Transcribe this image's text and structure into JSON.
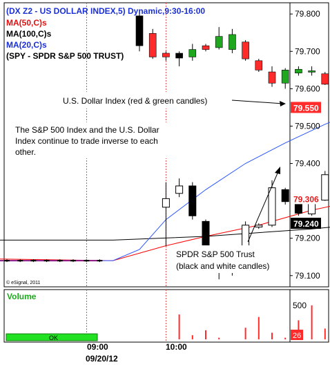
{
  "chart_data": {
    "type": "candlestick",
    "header": {
      "line1": "(DX Z2 - US DOLLAR INDEX,5) Dynamic,9:30-16:00",
      "line2": "MA(50,C)s",
      "line3": "MA(100,C)s",
      "line4": "MA(20,C)s",
      "line5": "(SPY - SPDR S&P 500 TRUST)"
    },
    "copyright": "© eSignal, 2011",
    "annotations": {
      "dollar": "U.S. Dollar Index (red & green candles)",
      "inverse_1": "The S&P 500 Index and the U.S. Dollar",
      "inverse_2": "Index continue to trade inverse to each",
      "inverse_3": "other.",
      "spdr_1": "SPDR S&P 500 Trust",
      "spdr_2": "(black and white candles)"
    },
    "price_axis": {
      "ticks": [
        "79.800",
        "79.700",
        "79.600",
        "79.500",
        "79.400",
        "79.200",
        "79.100"
      ],
      "range": [
        79.07,
        79.83
      ]
    },
    "price_labels": [
      {
        "text": "79.550",
        "value": 79.55,
        "color": "#ff2a2a",
        "text_color": "#ffffff"
      },
      {
        "text": "79.306",
        "value": 79.306,
        "color": "#ffffff",
        "text_color": "#e02020"
      },
      {
        "text": "79.240",
        "value": 79.24,
        "color": "#000000",
        "text_color": "#ffffff"
      }
    ],
    "time_axis": {
      "labels": [
        "09:00",
        "10:00"
      ],
      "date": "09/20/12"
    },
    "volume": {
      "title": "Volume",
      "ticks": [
        "500",
        "0"
      ],
      "last": "26",
      "ok_label": "OK",
      "bars": [
        {
          "i": 8,
          "v": 300,
          "c": "#ff2a2a"
        },
        {
          "i": 9,
          "v": 50,
          "c": "#ff2a2a"
        },
        {
          "i": 10,
          "v": 110,
          "c": "#ff2a2a"
        },
        {
          "i": 11,
          "v": 20,
          "c": "#ff2a2a"
        },
        {
          "i": 13,
          "v": 140,
          "c": "#ff2a2a"
        },
        {
          "i": 14,
          "v": 270,
          "c": "#ff2a2a"
        },
        {
          "i": 15,
          "v": 80,
          "c": "#ff2a2a"
        },
        {
          "i": 16,
          "v": 20,
          "c": "#ff2a2a"
        },
        {
          "i": 17,
          "v": 230,
          "c": "#ff2a2a"
        },
        {
          "i": 18,
          "v": 410,
          "c": "#ff2a2a"
        },
        {
          "i": 19,
          "v": 130,
          "c": "#ff2a2a"
        },
        {
          "i": 20,
          "v": 250,
          "c": "#ff2a2a"
        },
        {
          "i": 21,
          "v": 190,
          "c": "#ff2a2a"
        },
        {
          "i": 22,
          "v": 510,
          "c": "#ff2a2a"
        },
        {
          "i": 23,
          "v": 60,
          "c": "#ff2a2a"
        },
        {
          "i": 24,
          "v": 470,
          "c": "#ff2a2a"
        },
        {
          "i": 25,
          "v": 200,
          "c": "#ff2a2a"
        },
        {
          "i": 26,
          "v": 40,
          "c": "#ff2a2a"
        },
        {
          "i": 27,
          "v": 190,
          "c": "#ff2a2a"
        },
        {
          "i": 28,
          "v": 60,
          "c": "#ff2a2a"
        }
      ]
    },
    "dollar_candles": [
      {
        "i": 5,
        "o": 79.795,
        "c": 79.715,
        "h": 79.81,
        "l": 79.7,
        "col": "#000000"
      },
      {
        "i": 6,
        "o": 79.748,
        "c": 79.685,
        "h": 79.76,
        "l": 79.68,
        "col": "#ff2a2a"
      },
      {
        "i": 7,
        "o": 79.695,
        "c": 79.685,
        "h": 79.7,
        "l": 79.675,
        "col": "#ff2a2a"
      },
      {
        "i": 8,
        "o": 79.682,
        "c": 79.695,
        "h": 79.7,
        "l": 79.66,
        "col": "#000000"
      },
      {
        "i": 9,
        "o": 79.685,
        "c": 79.705,
        "h": 79.72,
        "l": 79.675,
        "col": "#1fa81f"
      },
      {
        "i": 10,
        "o": 79.715,
        "c": 79.705,
        "h": 79.72,
        "l": 79.7,
        "col": "#ff2a2a"
      },
      {
        "i": 11,
        "o": 79.71,
        "c": 79.74,
        "h": 79.765,
        "l": 79.705,
        "col": "#1fa81f"
      },
      {
        "i": 12,
        "o": 79.705,
        "c": 79.745,
        "h": 79.76,
        "l": 79.695,
        "col": "#1fa81f"
      },
      {
        "i": 13,
        "o": 79.725,
        "c": 79.68,
        "h": 79.73,
        "l": 79.675,
        "col": "#ff2a2a"
      },
      {
        "i": 14,
        "o": 79.675,
        "c": 79.65,
        "h": 79.68,
        "l": 79.645,
        "col": "#ff2a2a"
      },
      {
        "i": 15,
        "o": 79.645,
        "c": 79.615,
        "h": 79.66,
        "l": 79.605,
        "col": "#ff2a2a"
      },
      {
        "i": 16,
        "o": 79.615,
        "c": 79.65,
        "h": 79.655,
        "l": 79.6,
        "col": "#1fa81f"
      },
      {
        "i": 17,
        "o": 79.652,
        "c": 79.642,
        "h": 79.66,
        "l": 79.635,
        "col": "#1fa81f"
      },
      {
        "i": 18,
        "o": 79.648,
        "c": 79.645,
        "h": 79.66,
        "l": 79.635,
        "col": "#1fa81f"
      },
      {
        "i": 19,
        "o": 79.64,
        "c": 79.612,
        "h": 79.645,
        "l": 79.61,
        "col": "#ff2a2a"
      },
      {
        "i": 20,
        "o": 79.61,
        "c": 79.572,
        "h": 79.615,
        "l": 79.57,
        "col": "#ff2a2a"
      },
      {
        "i": 21,
        "o": 79.58,
        "c": 79.55,
        "h": 79.585,
        "l": 79.545,
        "col": "#ff2a2a"
      }
    ],
    "spy_candles": [
      {
        "i": 7,
        "o": 79.283,
        "c": 79.306,
        "h": 79.35,
        "l": 79.18,
        "filled": false
      },
      {
        "i": 8,
        "o": 79.32,
        "c": 79.34,
        "h": 79.36,
        "l": 79.31,
        "filled": false
      },
      {
        "i": 9,
        "o": 79.34,
        "c": 79.26,
        "h": 79.35,
        "l": 79.25,
        "filled": true
      },
      {
        "i": 10,
        "o": 79.245,
        "c": 79.145,
        "h": 79.25,
        "l": 79.13,
        "filled": true
      },
      {
        "i": 11,
        "o": 79.145,
        "c": 79.11,
        "h": 79.16,
        "l": 79.09,
        "filled": true
      },
      {
        "i": 12,
        "o": 79.115,
        "c": 79.135,
        "h": 79.165,
        "l": 79.1,
        "filled": false
      },
      {
        "i": 13,
        "o": 79.15,
        "c": 79.235,
        "h": 79.245,
        "l": 79.13,
        "filled": false
      },
      {
        "i": 14,
        "o": 79.23,
        "c": 79.235,
        "h": 79.24,
        "l": 79.225,
        "filled": false
      },
      {
        "i": 15,
        "o": 79.235,
        "c": 79.335,
        "h": 79.355,
        "l": 79.23,
        "filled": false
      },
      {
        "i": 16,
        "o": 79.33,
        "c": 79.298,
        "h": 79.335,
        "l": 79.29,
        "filled": true
      },
      {
        "i": 17,
        "o": 79.295,
        "c": 79.267,
        "h": 79.3,
        "l": 79.26,
        "filled": true
      },
      {
        "i": 18,
        "o": 79.265,
        "c": 79.302,
        "h": 79.31,
        "l": 79.26,
        "filled": false
      },
      {
        "i": 19,
        "o": 79.302,
        "c": 79.37,
        "h": 79.38,
        "l": 79.3,
        "filled": false
      },
      {
        "i": 20,
        "o": 79.37,
        "c": 79.445,
        "h": 79.45,
        "l": 79.36,
        "filled": false
      },
      {
        "i": 21,
        "o": 79.445,
        "c": 79.428,
        "h": 79.47,
        "l": 79.42,
        "filled": true
      },
      {
        "i": 22,
        "o": 79.41,
        "c": 79.46,
        "h": 79.48,
        "l": 79.4,
        "filled": false
      }
    ],
    "series": [
      {
        "name": "MA(50,C)s",
        "color": "#ff0000",
        "points": [
          [
            -7,
            79.145
          ],
          [
            3,
            79.14
          ],
          [
            7,
            79.18
          ],
          [
            10,
            79.205
          ],
          [
            14,
            79.235
          ],
          [
            18,
            79.275
          ],
          [
            22,
            79.305
          ]
        ]
      },
      {
        "name": "MA(100,C)s",
        "color": "#000000",
        "points": [
          [
            -7,
            79.195
          ],
          [
            3,
            79.195
          ],
          [
            10,
            79.205
          ],
          [
            14,
            79.215
          ],
          [
            18,
            79.225
          ],
          [
            22,
            79.238
          ]
        ]
      },
      {
        "name": "MA(20,C)s",
        "color": "#2a55ff",
        "points": [
          [
            -7,
            79.14
          ],
          [
            1,
            79.14
          ],
          [
            3,
            79.14
          ],
          [
            5,
            79.17
          ],
          [
            7,
            79.25
          ],
          [
            10,
            79.33
          ],
          [
            13,
            79.4
          ],
          [
            16,
            79.455
          ],
          [
            19,
            79.505
          ],
          [
            22,
            79.548
          ]
        ]
      },
      {
        "name": "baseline",
        "color": "#8a1a8a",
        "points": [
          [
            -7,
            79.14
          ],
          [
            0,
            79.14
          ],
          [
            2,
            79.14
          ]
        ]
      }
    ],
    "pre_flat_bars": [
      -6,
      -5,
      -4,
      -3,
      -2,
      -1,
      0,
      1,
      2
    ]
  }
}
